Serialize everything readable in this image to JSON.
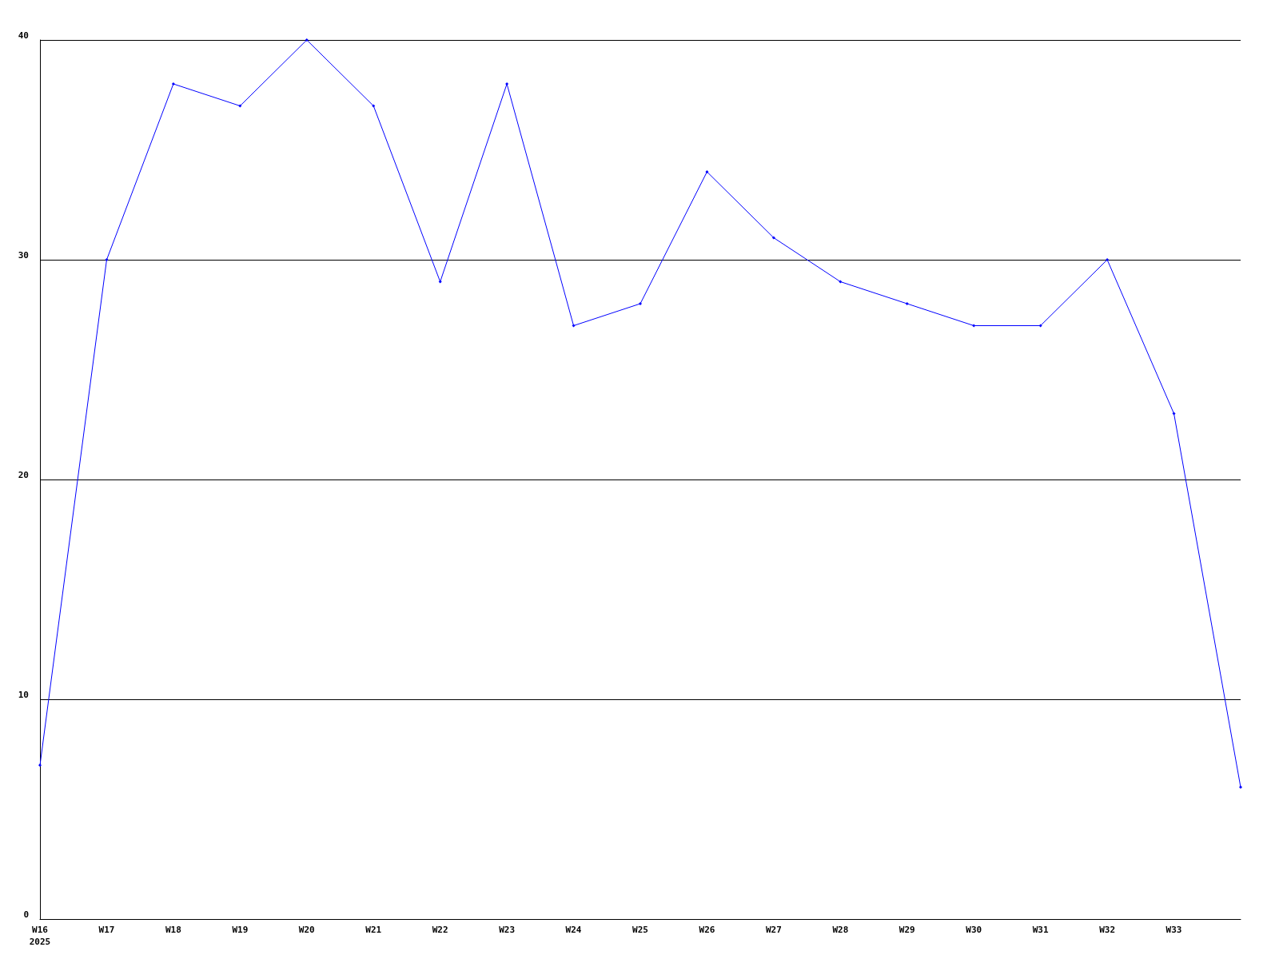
{
  "chart_data": {
    "type": "line",
    "categories": [
      "W16\n2025",
      "W17",
      "W18",
      "W19",
      "W20",
      "W21",
      "W22",
      "W23",
      "W24",
      "W25",
      "W26",
      "W27",
      "W28",
      "W29",
      "W30",
      "W31",
      "W32",
      "W33",
      null
    ],
    "series": [
      {
        "color": "#0000ff",
        "values": [
          7,
          30,
          38,
          37,
          40,
          37,
          29,
          38,
          27,
          28,
          34,
          31,
          29,
          28,
          27,
          27,
          30,
          23,
          6
        ]
      }
    ],
    "ylim": [
      0,
      40
    ],
    "yticks": [
      0,
      10,
      20,
      30,
      40
    ],
    "grid": "y",
    "marker": "diamond",
    "line_style": "solid"
  }
}
